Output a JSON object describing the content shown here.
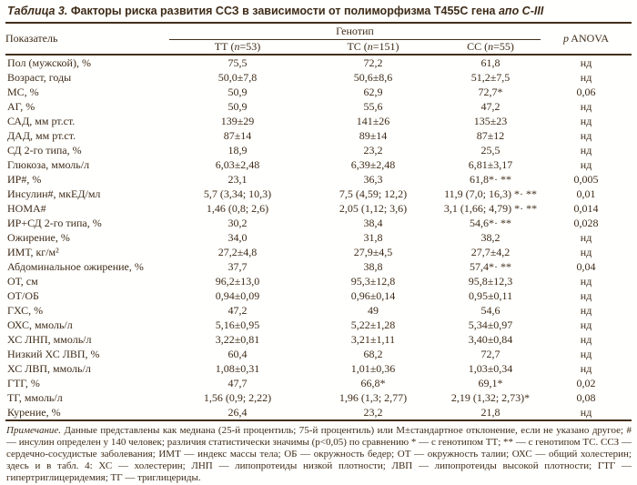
{
  "title": {
    "label": "Таблица 3.",
    "main": " Факторы риска развития ССЗ в зависимости от полиморфизма Т455С гена ",
    "gene": "апо C-III"
  },
  "table": {
    "header": {
      "parameter": "Показатель",
      "group": "Генотип",
      "genotypes": [
        "ТТ (n=53)",
        "ТС (n=151)",
        "СС (n=55)"
      ],
      "p": "p ANOVA"
    },
    "rows": [
      {
        "label": "Пол (мужской), %",
        "tt": "75,5",
        "tc": "72,2",
        "cc": "61,8",
        "p": "нд"
      },
      {
        "label": "Возраст, годы",
        "tt": "50,0±7,8",
        "tc": "50,6±8,6",
        "cc": "51,2±7,5",
        "p": "нд"
      },
      {
        "label": "МС, %",
        "tt": "50,9",
        "tc": "62,9",
        "cc": "72,7*",
        "p": "0,06"
      },
      {
        "label": "АГ, %",
        "tt": "50,9",
        "tc": "55,6",
        "cc": "47,2",
        "p": "нд"
      },
      {
        "label": "САД, мм рт.ст.",
        "tt": "139±29",
        "tc": "141±26",
        "cc": "135±23",
        "p": "нд"
      },
      {
        "label": "ДАД, мм рт.ст.",
        "tt": "87±14",
        "tc": "89±14",
        "cc": "87±12",
        "p": "нд"
      },
      {
        "label": "СД 2-го типа, %",
        "tt": "18,9",
        "tc": "23,2",
        "cc": "25,5",
        "p": "нд"
      },
      {
        "label": "Глюкоза, ммоль/л",
        "tt": "6,03±2,48",
        "tc": "6,39±2,48",
        "cc": "6,81±3,17",
        "p": "нд"
      },
      {
        "label": "ИР#, %",
        "tt": "23,1",
        "tc": "36,3",
        "cc": "61,8*· **",
        "p": "0,005"
      },
      {
        "label": "Инсулин#, мкЕД/мл",
        "tt": "5,7 (3,34; 10,3)",
        "tc": "7,5 (4,59;  12,2)",
        "cc": "11,9 (7,0; 16,3) *· **",
        "p": "0,01"
      },
      {
        "label": "НОМА#",
        "tt": "1,46 (0,8; 2,6)",
        "tc": "2,05 (1,12; 3,6)",
        "cc": "3,1 (1,66; 4,79) *· **",
        "p": "0,014"
      },
      {
        "label": "ИР+СД 2-го типа, %",
        "tt": "30,2",
        "tc": "38,4",
        "cc": "54,6*· **",
        "p": "0,028"
      },
      {
        "label": "Ожирение, %",
        "tt": "34,0",
        "tc": "31,8",
        "cc": "38,2",
        "p": "нд"
      },
      {
        "label": "ИМТ, кг/м²",
        "tt": "27,2±4,8",
        "tc": "27,9±4,5",
        "cc": "27,7±4,2",
        "p": "нд"
      },
      {
        "label": "Абдоминальное ожирение, %",
        "tt": "37,7",
        "tc": "38,8",
        "cc": "57,4*· **",
        "p": "0,04"
      },
      {
        "label": "ОТ, см",
        "tt": "96,2±13,0",
        "tc": "95,3±12,8",
        "cc": "95,8±12,3",
        "p": "нд"
      },
      {
        "label": "ОТ/ОБ",
        "tt": "0,94±0,09",
        "tc": "0,96±0,14",
        "cc": "0,95±0,11",
        "p": "нд"
      },
      {
        "label": "ГХС, %",
        "tt": "47,2",
        "tc": "49",
        "cc": "54,6",
        "p": "нд"
      },
      {
        "label": "ОХС, ммоль/л",
        "tt": "5,16±0,95",
        "tc": "5,22±1,28",
        "cc": "5,34±0,97",
        "p": "нд"
      },
      {
        "label": "ХС ЛНП, ммоль/л",
        "tt": "3,22±0,81",
        "tc": "3,21±1,11",
        "cc": "3,40±0,84",
        "p": "нд"
      },
      {
        "label": "Низкий ХС ЛВП, %",
        "tt": "60,4",
        "tc": "68,2",
        "cc": "72,7",
        "p": "нд"
      },
      {
        "label": "ХС ЛВП, ммоль/л",
        "tt": "1,08±0,31",
        "tc": "1,01±0,36",
        "cc": "1,03±0,34",
        "p": "нд"
      },
      {
        "label": "ГТГ, %",
        "tt": "47,7",
        "tc": "66,8*",
        "cc": "69,1*",
        "p": "0,02"
      },
      {
        "label": "ТГ, ммоль/л",
        "tt": "1,56 (0,9; 2,22)",
        "tc": "1,96 (1,3; 2,77)",
        "cc": "2,19 (1,32; 2,73)*",
        "p": "0,08"
      },
      {
        "label": "Курение, %",
        "tt": "26,4",
        "tc": "23,2",
        "cc": "21,8",
        "p": "нд"
      }
    ]
  },
  "footnote": {
    "label": "Примечание.",
    "text": "Данные представлены как медиана (25-й процентиль; 75-й процентиль) или М±стандартное отклонение, если не указано другое; # — инсулин определен у 140 человек; различия статистически значимы (p<0,05) по сравнению * — с генотипом ТТ; ** — с генотипом ТС. ССЗ — сердечно-сосудистые заболевания; ИМТ — индекс массы тела; ОБ — окружность бедер; ОТ — окружность талии; ОХС — общий холестерин; здесь и в табл. 4: ХС — холестерин; ЛНП — липопротеиды низкой плотности; ЛВП — липопротеиды высокой плотности; ГТГ — гипертриглицеридемия; ТГ — триглицериды."
  },
  "colors": {
    "ink": "#3e2b18",
    "background": "#fffffd"
  }
}
